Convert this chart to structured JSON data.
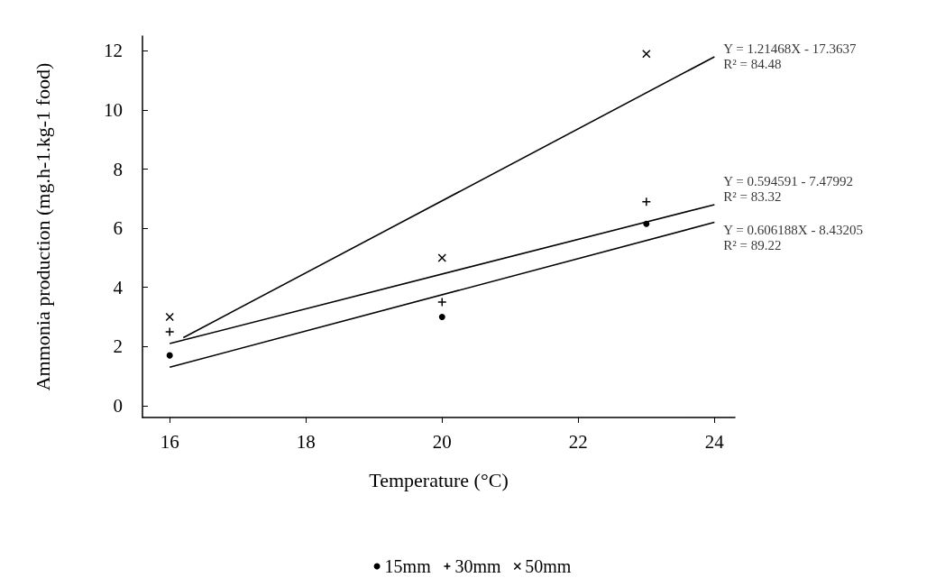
{
  "chart_data": {
    "type": "scatter",
    "xlabel": "Temperature (°C)",
    "ylabel": "Ammonia production (mg.h-1.kg-1 food)",
    "xlim": [
      15.6,
      24.3
    ],
    "ylim": [
      -0.4,
      12.5
    ],
    "xticks": [
      16,
      18,
      20,
      22,
      24
    ],
    "yticks": [
      0,
      2,
      4,
      6,
      8,
      10,
      12
    ],
    "grid": false,
    "legend": "bottom",
    "series": [
      {
        "name": "15mm",
        "marker": "circle",
        "color": "#000000",
        "x": [
          16,
          20,
          23
        ],
        "values": [
          1.7,
          3.0,
          6.15
        ]
      },
      {
        "name": "30mm",
        "marker": "plus",
        "color": "#000000",
        "x": [
          16,
          20,
          23
        ],
        "values": [
          2.5,
          3.5,
          6.9
        ]
      },
      {
        "name": "50mm",
        "marker": "cross",
        "color": "#000000",
        "x": [
          16,
          20,
          23
        ],
        "values": [
          3.0,
          5.0,
          11.9
        ]
      },
      {
        "type": "line",
        "marker": "none",
        "color": "#000000",
        "x": [
          16.2,
          24
        ],
        "values": [
          2.3,
          11.8
        ]
      },
      {
        "type": "line",
        "marker": "none",
        "color": "#000000",
        "x": [
          16,
          24
        ],
        "values": [
          2.1,
          6.8
        ]
      },
      {
        "type": "line",
        "marker": "none",
        "color": "#000000",
        "x": [
          16,
          24
        ],
        "values": [
          1.3,
          6.2
        ]
      }
    ],
    "annotations": [
      "Y = 1.21468X - 17.3637\nR² = 84.48",
      "Y = 0.594591 - 7.47992\nR² = 83.32",
      "Y = 0.606188X - 8.43205\nR² = 89.22"
    ]
  }
}
